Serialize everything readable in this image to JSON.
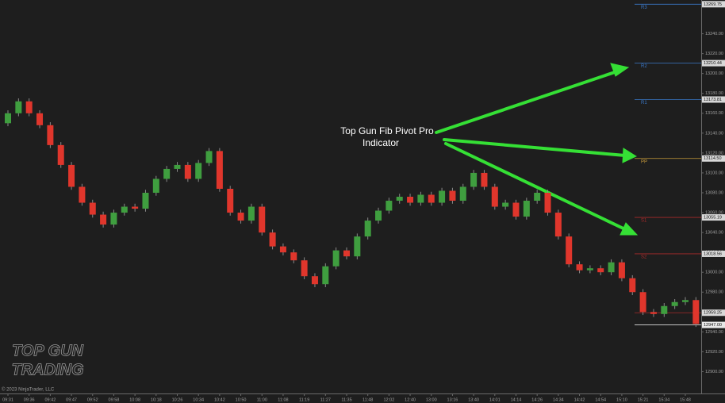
{
  "chart_data": {
    "type": "candlestick",
    "annotation": [
      "Top Gun Fib Pivot Pro",
      "Indicator"
    ],
    "copyright": "© 2023 NinjaTrader, LLC",
    "logo": [
      "TOP GUN",
      "TRADING"
    ],
    "up_color": "#3f9e3f",
    "down_color": "#e0362c",
    "grid": false,
    "xlim": [
      -0.75,
      65.5
    ],
    "ylim": [
      12878,
      13274
    ],
    "xticks": [
      {
        "value": 0,
        "label": "09:31"
      },
      {
        "value": 2,
        "label": "09:36"
      },
      {
        "value": 4,
        "label": "09:42"
      },
      {
        "value": 6,
        "label": "09:47"
      },
      {
        "value": 8,
        "label": "09:52"
      },
      {
        "value": 10,
        "label": "09:58"
      },
      {
        "value": 12,
        "label": "10:08"
      },
      {
        "value": 14,
        "label": "10:18"
      },
      {
        "value": 16,
        "label": "10:26"
      },
      {
        "value": 18,
        "label": "10:34"
      },
      {
        "value": 20,
        "label": "10:42"
      },
      {
        "value": 22,
        "label": "10:50"
      },
      {
        "value": 24,
        "label": "11:00"
      },
      {
        "value": 26,
        "label": "11:08"
      },
      {
        "value": 28,
        "label": "11:19"
      },
      {
        "value": 30,
        "label": "11:27"
      },
      {
        "value": 32,
        "label": "11:35"
      },
      {
        "value": 34,
        "label": "11:48"
      },
      {
        "value": 36,
        "label": "12:02"
      },
      {
        "value": 38,
        "label": "12:40"
      },
      {
        "value": 40,
        "label": "13:00"
      },
      {
        "value": 42,
        "label": "13:16"
      },
      {
        "value": 44,
        "label": "13:40"
      },
      {
        "value": 46,
        "label": "14:01"
      },
      {
        "value": 48,
        "label": "14:14"
      },
      {
        "value": 50,
        "label": "14:26"
      },
      {
        "value": 52,
        "label": "14:34"
      },
      {
        "value": 54,
        "label": "14:42"
      },
      {
        "value": 56,
        "label": "14:54"
      },
      {
        "value": 58,
        "label": "15:10"
      },
      {
        "value": 60,
        "label": "15:21"
      },
      {
        "value": 62,
        "label": "15:34"
      },
      {
        "value": 64,
        "label": "15:48"
      }
    ],
    "yticks": [
      {
        "value": 12900,
        "label": "12900.00"
      },
      {
        "value": 12920,
        "label": "12920.00"
      },
      {
        "value": 12940,
        "label": "12940.00"
      },
      {
        "value": 12960,
        "label": "12960.00"
      },
      {
        "value": 12980,
        "label": "12980.00"
      },
      {
        "value": 13000,
        "label": "13000.00"
      },
      {
        "value": 13020,
        "label": "13020.00"
      },
      {
        "value": 13040,
        "label": "13040.00"
      },
      {
        "value": 13060,
        "label": "13060.00"
      },
      {
        "value": 13080,
        "label": "13080.00"
      },
      {
        "value": 13100,
        "label": "13100.00"
      },
      {
        "value": 13120,
        "label": "13120.00"
      },
      {
        "value": 13140,
        "label": "13140.00"
      },
      {
        "value": 13160,
        "label": "13160.00"
      },
      {
        "value": 13180,
        "label": "13180.00"
      },
      {
        "value": 13200,
        "label": "13200.00"
      },
      {
        "value": 13220,
        "label": "13220.00"
      },
      {
        "value": 13240,
        "label": "13240.00"
      }
    ],
    "open": [
      13150,
      13160,
      13172,
      13160,
      13148,
      13128,
      13108,
      13086,
      13070,
      13058,
      13048,
      13060,
      13066,
      13064,
      13080,
      13094,
      13104,
      13108,
      13094,
      13110,
      13122,
      13084,
      13060,
      13052,
      13066,
      13040,
      13026,
      13020,
      13012,
      12996,
      12988,
      13006,
      13022,
      13016,
      13036,
      13052,
      13062,
      13072,
      13076,
      13070,
      13078,
      13070,
      13082,
      13072,
      13086,
      13100,
      13086,
      13066,
      13070,
      13056,
      13072,
      13080,
      13060,
      13036,
      13008,
      13002,
      13004,
      13000,
      13010,
      12994,
      12980,
      12960,
      12958,
      12966,
      12970,
      12972
    ],
    "high": [
      13163,
      13175,
      13175,
      13163,
      13151,
      13131,
      13111,
      13089,
      13073,
      13061,
      13063,
      13069,
      13069,
      13083,
      13097,
      13107,
      13111,
      13111,
      13113,
      13125,
      13125,
      13087,
      13063,
      13069,
      13069,
      13043,
      13029,
      13023,
      13015,
      12999,
      13009,
      13025,
      13025,
      13039,
      13055,
      13065,
      13075,
      13079,
      13079,
      13081,
      13081,
      13085,
      13085,
      13089,
      13103,
      13103,
      13089,
      13073,
      13073,
      13075,
      13083,
      13083,
      13063,
      13039,
      13011,
      13007,
      13007,
      13013,
      13013,
      12997,
      12983,
      12963,
      12969,
      12973,
      12975,
      12975
    ],
    "low": [
      13147,
      13157,
      13157,
      13145,
      13125,
      13105,
      13083,
      13067,
      13055,
      13045,
      13045,
      13057,
      13061,
      13061,
      13077,
      13091,
      13101,
      13091,
      13091,
      13107,
      13081,
      13057,
      13049,
      13049,
      13037,
      13023,
      13017,
      13009,
      12993,
      12985,
      12985,
      13003,
      13013,
      13013,
      13033,
      13049,
      13059,
      13069,
      13067,
      13067,
      13067,
      13067,
      13069,
      13069,
      13083,
      13083,
      13063,
      13063,
      13053,
      13053,
      13069,
      13057,
      13033,
      13005,
      12999,
      12999,
      12997,
      12997,
      12991,
      12977,
      12957,
      12955,
      12955,
      12963,
      12967,
      12945
    ],
    "close": [
      13160,
      13172,
      13160,
      13148,
      13128,
      13108,
      13086,
      13070,
      13058,
      13048,
      13060,
      13066,
      13064,
      13080,
      13094,
      13104,
      13108,
      13094,
      13110,
      13122,
      13084,
      13060,
      13052,
      13066,
      13040,
      13026,
      13020,
      13012,
      12996,
      12988,
      13006,
      13022,
      13016,
      13036,
      13052,
      13062,
      13072,
      13076,
      13070,
      13078,
      13070,
      13082,
      13072,
      13086,
      13100,
      13086,
      13066,
      13070,
      13056,
      13072,
      13080,
      13060,
      13036,
      13008,
      13002,
      13004,
      13000,
      13010,
      12994,
      12980,
      12960,
      12958,
      12966,
      12970,
      12972,
      12948
    ],
    "levels": [
      {
        "name": "R3",
        "value": 13269.75,
        "value_label": "13269.75",
        "color": "#3a78c9"
      },
      {
        "name": "R2",
        "value": 13210.44,
        "value_label": "13210.44",
        "color": "#3a78c9"
      },
      {
        "name": "R1",
        "value": 13173.81,
        "value_label": "13173.81",
        "color": "#3a78c9"
      },
      {
        "name": "PP",
        "value": 13114.5,
        "value_label": "13114.50",
        "color": "#c89a3a"
      },
      {
        "name": "S1",
        "value": 13055.19,
        "value_label": "13055.19",
        "color": "#a82a2a"
      },
      {
        "name": "S2",
        "value": 13018.56,
        "value_label": "13018.56",
        "color": "#a82a2a"
      },
      {
        "value": 12959.25,
        "value_label": "12959.25",
        "color": "#a82a2a"
      },
      {
        "value": 12947,
        "value_label": "12947.00",
        "color": "#dddddd"
      }
    ]
  }
}
